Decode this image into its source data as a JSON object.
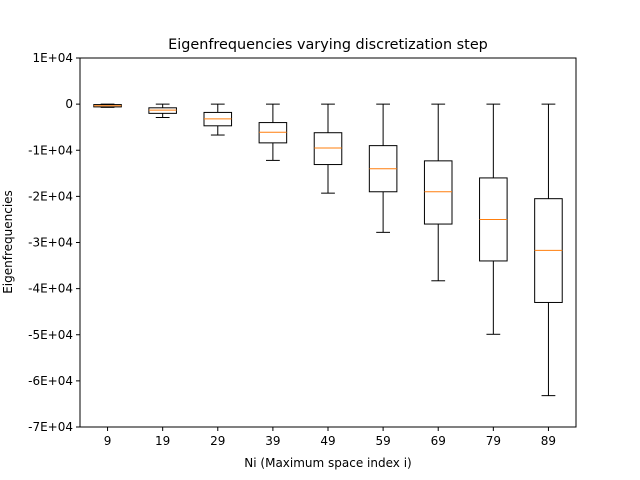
{
  "chart_data": {
    "type": "box",
    "title": "Eigenfrequencies varying discretization step",
    "xlabel": "Ni (Maximum space index i)",
    "ylabel": "Eigenfrequencies",
    "categories": [
      "9",
      "19",
      "29",
      "39",
      "49",
      "59",
      "69",
      "79",
      "89"
    ],
    "ylim": [
      -70000,
      10000
    ],
    "yticks": [
      10000,
      0,
      -10000,
      -20000,
      -30000,
      -40000,
      -50000,
      -60000,
      -70000
    ],
    "ytick_labels": [
      "1E+04",
      "0",
      "-1E+04",
      "-2E+04",
      "-3E+04",
      "-4E+04",
      "-5E+04",
      "-6E+04",
      "-7E+04"
    ],
    "grid": false,
    "box_color": "#000000",
    "median_color": "#ff7f0e",
    "boxes": [
      {
        "label": "9",
        "whisker_low": -700,
        "q1": -600,
        "median": -350,
        "q3": -100,
        "whisker_high": 0
      },
      {
        "label": "19",
        "whisker_low": -2900,
        "q1": -2000,
        "median": -1300,
        "q3": -800,
        "whisker_high": 0
      },
      {
        "label": "29",
        "whisker_low": -6700,
        "q1": -4700,
        "median": -3200,
        "q3": -1800,
        "whisker_high": 0
      },
      {
        "label": "39",
        "whisker_low": -12200,
        "q1": -8400,
        "median": -6100,
        "q3": -4000,
        "whisker_high": 0
      },
      {
        "label": "49",
        "whisker_low": -19300,
        "q1": -13100,
        "median": -9500,
        "q3": -6200,
        "whisker_high": 0
      },
      {
        "label": "59",
        "whisker_low": -27800,
        "q1": -19000,
        "median": -14000,
        "q3": -9000,
        "whisker_high": 0
      },
      {
        "label": "69",
        "whisker_low": -38300,
        "q1": -26000,
        "median": -19000,
        "q3": -12300,
        "whisker_high": 0
      },
      {
        "label": "79",
        "whisker_low": -49900,
        "q1": -34000,
        "median": -25000,
        "q3": -16000,
        "whisker_high": 0
      },
      {
        "label": "89",
        "whisker_low": -63200,
        "q1": -43000,
        "median": -31700,
        "q3": -20500,
        "whisker_high": 0
      }
    ]
  }
}
